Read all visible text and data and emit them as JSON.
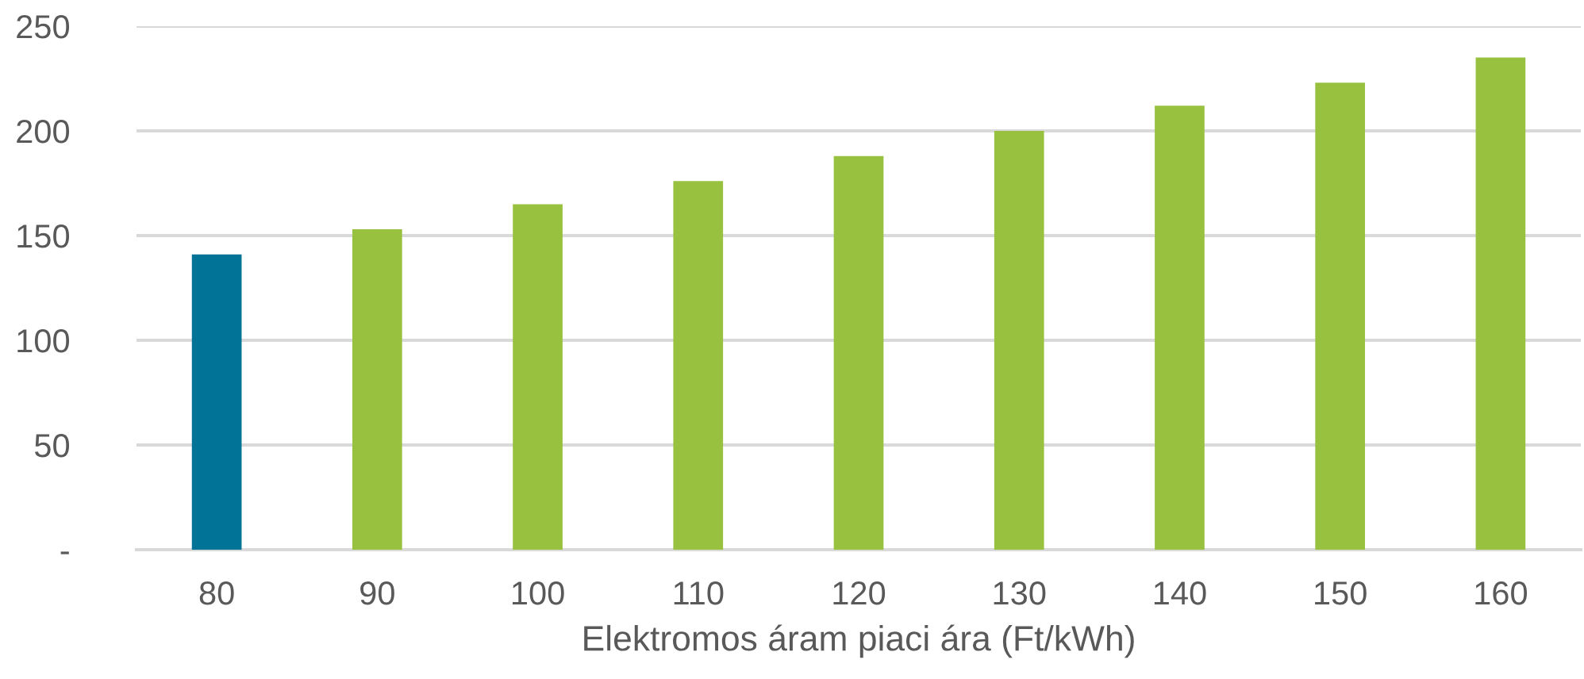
{
  "chart_data": {
    "type": "bar",
    "xlabel": "Elektromos áram piaci ára (Ft/kWh)",
    "categories": [
      "80",
      "90",
      "100",
      "110",
      "120",
      "130",
      "140",
      "150",
      "160"
    ],
    "values": [
      141,
      153,
      165,
      176,
      188,
      200,
      212,
      223,
      235
    ],
    "colors": [
      "#007396",
      "#97c13f",
      "#97c13f",
      "#97c13f",
      "#97c13f",
      "#97c13f",
      "#97c13f",
      "#97c13f",
      "#97c13f"
    ],
    "ylim": [
      0,
      250
    ],
    "yticks": [
      {
        "value": 0,
        "label": "-"
      },
      50,
      100,
      150,
      200,
      250
    ],
    "grid": "y",
    "legend": false
  }
}
